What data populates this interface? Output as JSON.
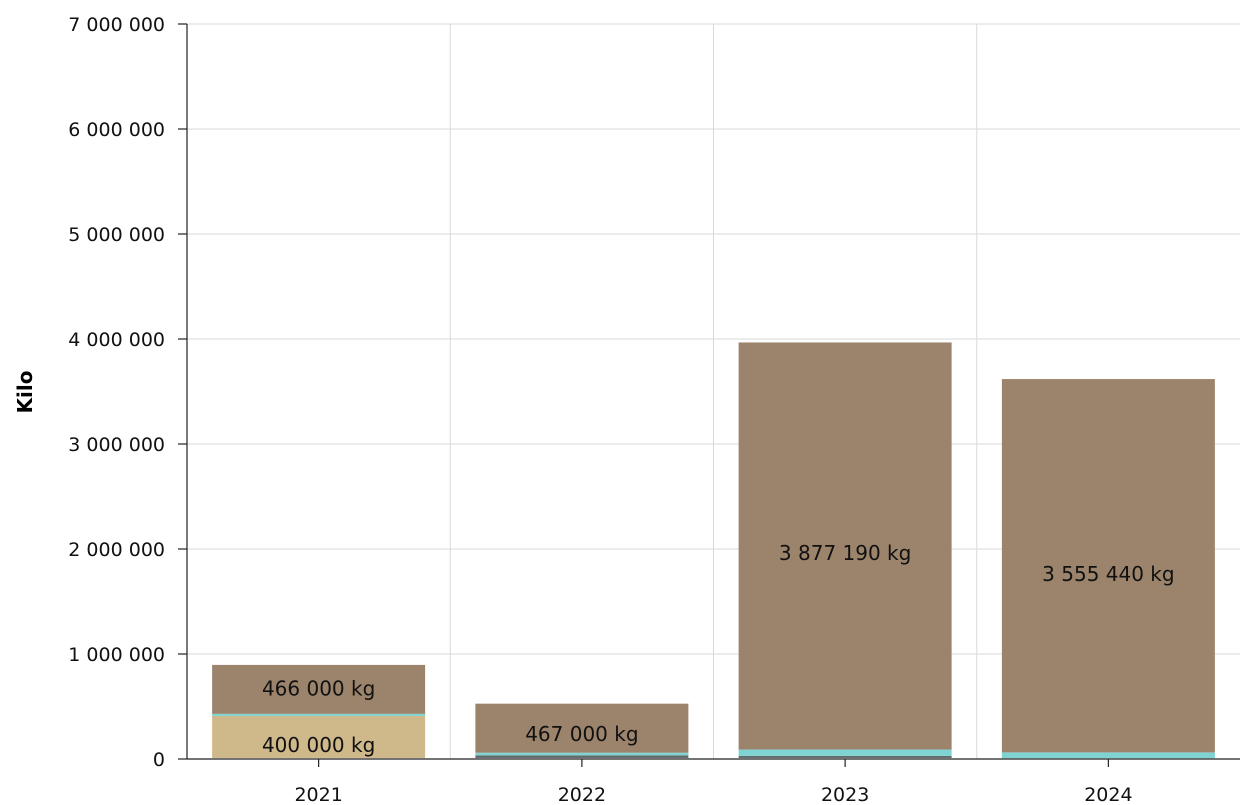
{
  "chart_data": {
    "type": "bar",
    "stacked": true,
    "title": "",
    "xlabel": "",
    "ylabel": "Kilo",
    "ylim": [
      0,
      7000000
    ],
    "yticks": [
      0,
      1000000,
      2000000,
      3000000,
      4000000,
      5000000,
      6000000,
      7000000
    ],
    "ytick_labels": [
      "0",
      "1 000 000",
      "2 000 000",
      "3 000 000",
      "4 000 000",
      "5 000 000",
      "6 000 000",
      "7 000 000"
    ],
    "categories": [
      "2021",
      "2022",
      "2023",
      "2024"
    ],
    "grid": true,
    "legend": "none",
    "series": [
      {
        "color": "#f2f2f2",
        "values": [
          10000,
          10000,
          10000,
          8000
        ]
      },
      {
        "color": "#5f6b6b",
        "values": [
          0,
          25000,
          20000,
          0
        ]
      },
      {
        "color": "#cfb88a",
        "values": [
          400000,
          0,
          0,
          0
        ]
      },
      {
        "color": "#7fd3d3",
        "values": [
          20000,
          25000,
          60000,
          55000
        ]
      },
      {
        "color": "#9c836b",
        "values": [
          466000,
          467000,
          3877190,
          3555440
        ]
      }
    ],
    "data_labels": [
      {
        "category": "2021",
        "text": "466 000 kg",
        "value_at": 673000
      },
      {
        "category": "2021",
        "text": "400 000 kg",
        "value_at": 135000
      },
      {
        "category": "2022",
        "text": "467 000 kg",
        "value_at": 238000
      },
      {
        "category": "2023",
        "text": "3 877 190 kg",
        "value_at": 1960000
      },
      {
        "category": "2024",
        "text": "3 555 440 kg",
        "value_at": 1760000
      }
    ]
  }
}
